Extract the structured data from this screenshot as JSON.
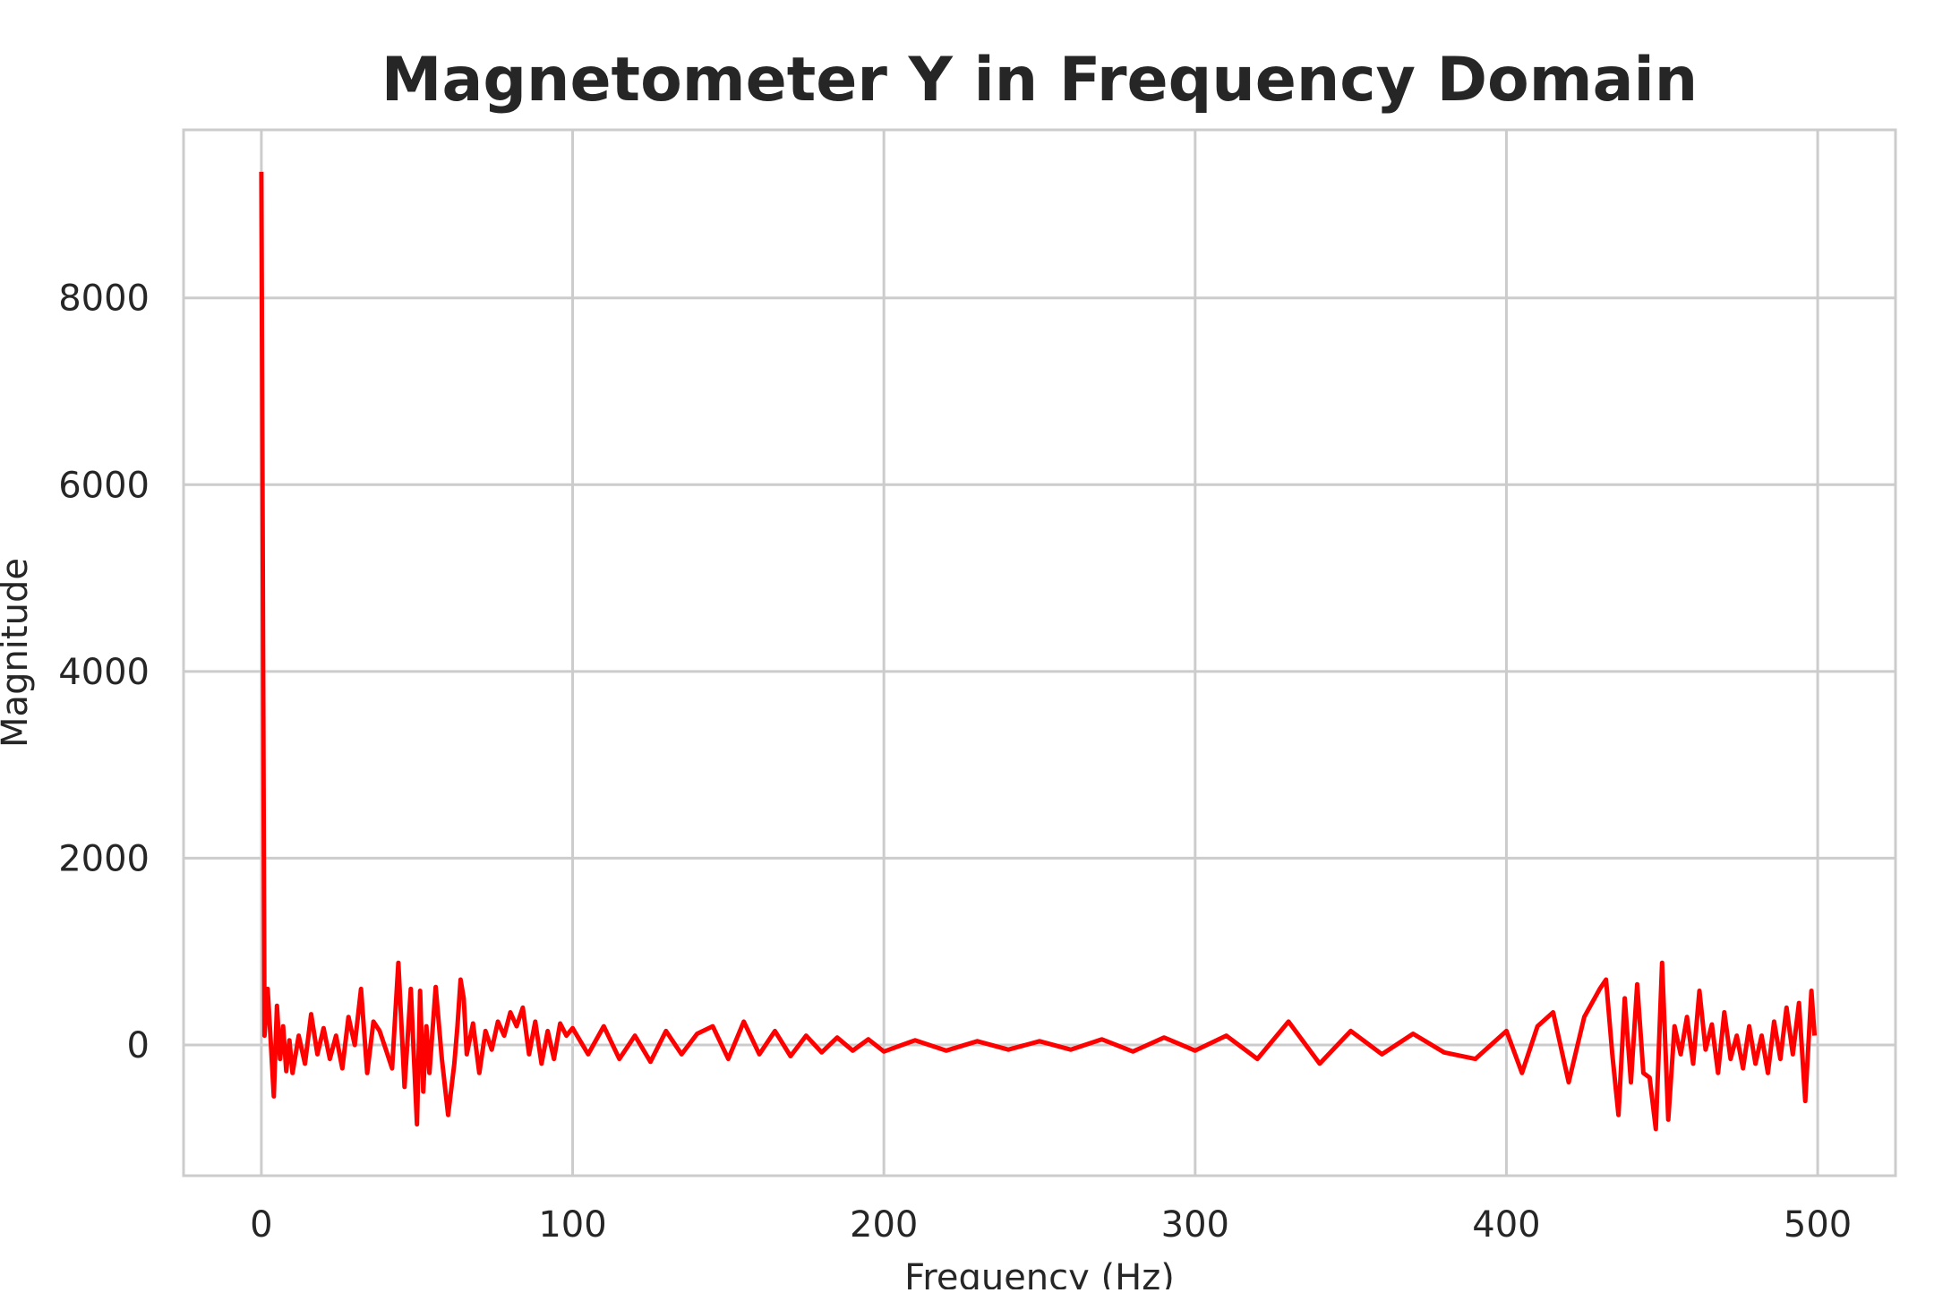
{
  "chart_data": {
    "type": "line",
    "title": "Magnetometer Y in Frequency Domain",
    "xlabel": "Frequency (Hz)",
    "ylabel": "Magnitude",
    "xlim": [
      -25,
      525
    ],
    "ylim": [
      -1400,
      9800
    ],
    "xticks": [
      0,
      100,
      200,
      300,
      400,
      500
    ],
    "xtick_labels": [
      "0",
      "100",
      "200",
      "300",
      "400",
      "500"
    ],
    "yticks": [
      0,
      2000,
      4000,
      6000,
      8000
    ],
    "ytick_labels": [
      "0",
      "2000",
      "4000",
      "6000",
      "8000"
    ],
    "grid": true,
    "line_color": "#ff0000",
    "grid_color": "#cccccc",
    "frame_color": "#cccccc",
    "series": [
      {
        "x": [
          0,
          1,
          2,
          3,
          4,
          5,
          6,
          7,
          8,
          9,
          10,
          12,
          14,
          16,
          18,
          20,
          22,
          24,
          26,
          28,
          30,
          32,
          34,
          36,
          38,
          40,
          42,
          44,
          46,
          48,
          50,
          51,
          52,
          53,
          54,
          56,
          58,
          60,
          62,
          63,
          64,
          65,
          66,
          68,
          70,
          72,
          74,
          76,
          78,
          80,
          82,
          84,
          86,
          88,
          90,
          92,
          94,
          96,
          98,
          100,
          105,
          110,
          115,
          120,
          125,
          130,
          135,
          140,
          145,
          150,
          155,
          160,
          165,
          170,
          175,
          180,
          185,
          190,
          195,
          200,
          210,
          220,
          230,
          240,
          250,
          260,
          270,
          280,
          290,
          300,
          310,
          320,
          330,
          340,
          350,
          360,
          370,
          380,
          390,
          400,
          405,
          410,
          415,
          420,
          425,
          430,
          432,
          434,
          436,
          438,
          440,
          442,
          444,
          446,
          448,
          450,
          452,
          454,
          456,
          458,
          460,
          462,
          464,
          466,
          468,
          470,
          472,
          474,
          476,
          478,
          480,
          482,
          484,
          486,
          488,
          490,
          492,
          494,
          496,
          498,
          499
        ],
        "y": [
          9350,
          100,
          600,
          50,
          -550,
          420,
          -150,
          200,
          -280,
          50,
          -300,
          100,
          -200,
          330,
          -100,
          180,
          -150,
          100,
          -250,
          300,
          0,
          600,
          -300,
          250,
          150,
          -50,
          -250,
          880,
          -450,
          600,
          -850,
          580,
          -500,
          200,
          -300,
          620,
          -150,
          -750,
          -200,
          200,
          700,
          500,
          -100,
          230,
          -300,
          150,
          -50,
          250,
          100,
          350,
          200,
          400,
          -100,
          250,
          -200,
          150,
          -150,
          230,
          100,
          180,
          -100,
          200,
          -150,
          100,
          -180,
          150,
          -100,
          120,
          200,
          -150,
          250,
          -100,
          150,
          -120,
          100,
          -80,
          80,
          -60,
          60,
          -70,
          50,
          -60,
          40,
          -50,
          40,
          -50,
          60,
          -70,
          80,
          -60,
          100,
          -150,
          250,
          -200,
          150,
          -100,
          120,
          -80,
          -150,
          150,
          -300,
          200,
          350,
          -400,
          300,
          600,
          700,
          -100,
          -750,
          500,
          -400,
          650,
          -300,
          -350,
          -900,
          880,
          -800,
          200,
          -100,
          300,
          -200,
          580,
          -50,
          220,
          -300,
          350,
          -150,
          100,
          -250,
          200,
          -200,
          100,
          -300,
          250,
          -150,
          400,
          -100,
          450,
          -600,
          580,
          100
        ]
      }
    ]
  }
}
